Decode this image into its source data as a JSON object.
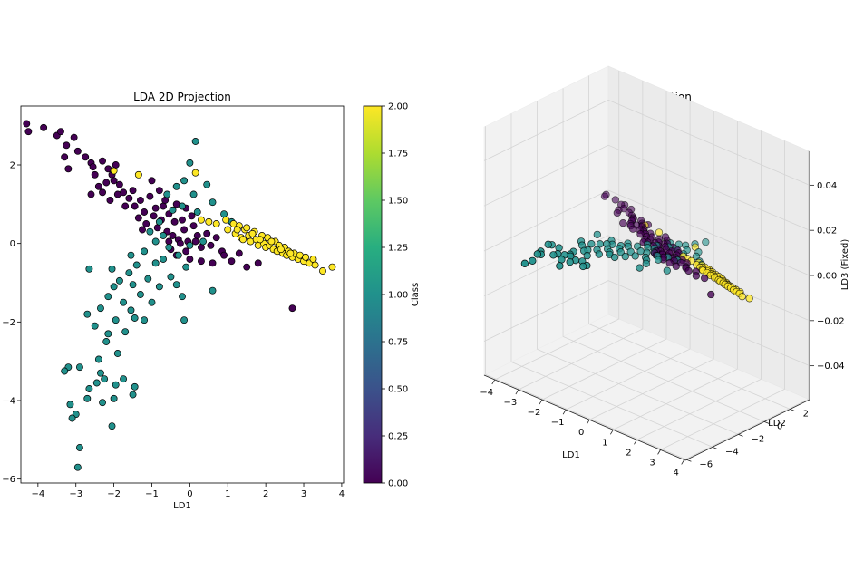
{
  "chart_data": [
    {
      "type": "scatter",
      "title": "LDA 2D Projection",
      "xlabel": "LD1",
      "ylabel": "",
      "xlim": [
        -4.45,
        4.05
      ],
      "ylim": [
        -6.1,
        3.5
      ],
      "xticks": [
        "−4",
        "−3",
        "−2",
        "−1",
        "0",
        "1",
        "2",
        "3",
        "4"
      ],
      "xtick_values": [
        -4,
        -3,
        -2,
        -1,
        0,
        1,
        2,
        3,
        4
      ],
      "yticks": [
        "−6",
        "−4",
        "−2",
        "0",
        "2"
      ],
      "ytick_values": [
        -6,
        -4,
        -2,
        0,
        2
      ],
      "grid": false,
      "colorbar": {
        "label": "Class",
        "range": [
          0,
          2
        ],
        "ticks": [
          "0.00",
          "0.25",
          "0.50",
          "0.75",
          "1.00",
          "1.25",
          "1.50",
          "1.75",
          "2.00"
        ],
        "tick_values": [
          0,
          0.25,
          0.5,
          0.75,
          1,
          1.25,
          1.5,
          1.75,
          2
        ],
        "colormap": "viridis"
      },
      "class_colors": [
        "#440154",
        "#21918c",
        "#fde725"
      ],
      "series": [
        {
          "class": 0,
          "points": [
            [
              -4.3,
              3.05
            ],
            [
              -4.25,
              2.85
            ],
            [
              -3.85,
              2.95
            ],
            [
              -3.5,
              2.75
            ],
            [
              -3.4,
              2.85
            ],
            [
              -3.25,
              2.5
            ],
            [
              -3.05,
              2.7
            ],
            [
              -3.3,
              2.2
            ],
            [
              -2.95,
              2.35
            ],
            [
              -2.75,
              2.2
            ],
            [
              -3.2,
              1.9
            ],
            [
              -2.6,
              2.05
            ],
            [
              -2.5,
              1.75
            ],
            [
              -2.3,
              2.1
            ],
            [
              -2.15,
              1.9
            ],
            [
              -2.05,
              1.75
            ],
            [
              -2.4,
              1.45
            ],
            [
              -2.2,
              1.55
            ],
            [
              -1.95,
              2.0
            ],
            [
              -1.85,
              1.5
            ],
            [
              -1.75,
              1.3
            ],
            [
              -2.6,
              1.25
            ],
            [
              -2.3,
              1.3
            ],
            [
              -2.1,
              1.1
            ],
            [
              -1.6,
              1.15
            ],
            [
              -1.45,
              0.95
            ],
            [
              -1.5,
              1.35
            ],
            [
              -1.3,
              1.1
            ],
            [
              -1.2,
              0.8
            ],
            [
              -1.05,
              1.2
            ],
            [
              -1.35,
              0.65
            ],
            [
              -0.9,
              0.9
            ],
            [
              -0.75,
              0.6
            ],
            [
              -1.15,
              0.5
            ],
            [
              -0.95,
              0.7
            ],
            [
              -0.85,
              0.4
            ],
            [
              -0.7,
              0.95
            ],
            [
              -0.6,
              0.3
            ],
            [
              -0.55,
              0.75
            ],
            [
              -0.45,
              0.2
            ],
            [
              -0.4,
              0.55
            ],
            [
              -0.3,
              0.1
            ],
            [
              -0.2,
              0.6
            ],
            [
              -0.15,
              0.35
            ],
            [
              -0.05,
              0.05
            ],
            [
              0.1,
              0.45
            ],
            [
              0.2,
              0.2
            ],
            [
              0.3,
              -0.1
            ],
            [
              0.45,
              0.25
            ],
            [
              0.55,
              -0.05
            ],
            [
              0.7,
              0.15
            ],
            [
              0.85,
              -0.2
            ],
            [
              -0.1,
              -0.2
            ],
            [
              -0.25,
              0.0
            ],
            [
              -0.5,
              -0.15
            ],
            [
              0.0,
              -0.4
            ],
            [
              0.3,
              -0.45
            ],
            [
              0.6,
              -0.5
            ],
            [
              0.9,
              -0.3
            ],
            [
              1.1,
              -0.45
            ],
            [
              1.3,
              -0.25
            ],
            [
              1.5,
              -0.6
            ],
            [
              1.8,
              -0.5
            ],
            [
              2.7,
              -1.65
            ],
            [
              -1.0,
              1.6
            ],
            [
              -0.8,
              1.35
            ],
            [
              -0.65,
              1.1
            ],
            [
              -0.35,
              1.0
            ],
            [
              -0.1,
              0.9
            ],
            [
              0.05,
              0.7
            ],
            [
              -1.7,
              0.95
            ],
            [
              -1.9,
              1.25
            ],
            [
              -2.0,
              1.6
            ],
            [
              -2.55,
              1.95
            ],
            [
              -1.25,
              0.35
            ],
            [
              -0.55,
              0.05
            ],
            [
              -0.35,
              -0.3
            ],
            [
              0.15,
              0.05
            ]
          ]
        },
        {
          "class": 1,
          "points": [
            [
              0.15,
              2.6
            ],
            [
              0.0,
              2.05
            ],
            [
              -0.15,
              1.6
            ],
            [
              0.45,
              1.5
            ],
            [
              -0.35,
              1.45
            ],
            [
              0.1,
              1.25
            ],
            [
              -0.6,
              1.25
            ],
            [
              0.6,
              1.05
            ],
            [
              -0.2,
              0.95
            ],
            [
              0.2,
              0.8
            ],
            [
              -0.45,
              0.85
            ],
            [
              0.9,
              0.75
            ],
            [
              1.1,
              0.55
            ],
            [
              -0.8,
              0.55
            ],
            [
              -1.05,
              0.3
            ],
            [
              -0.7,
              0.2
            ],
            [
              -0.9,
              0.05
            ],
            [
              -0.55,
              -0.1
            ],
            [
              -1.2,
              -0.2
            ],
            [
              -0.3,
              -0.3
            ],
            [
              -1.4,
              -0.55
            ],
            [
              -0.9,
              -0.5
            ],
            [
              -0.1,
              -0.6
            ],
            [
              -1.6,
              -0.75
            ],
            [
              -1.85,
              -0.95
            ],
            [
              -1.1,
              -0.9
            ],
            [
              -0.5,
              -0.85
            ],
            [
              -2.0,
              -1.1
            ],
            [
              -1.5,
              -1.05
            ],
            [
              -0.8,
              -1.1
            ],
            [
              -2.15,
              -1.35
            ],
            [
              -1.3,
              -1.3
            ],
            [
              -0.2,
              -1.35
            ],
            [
              -1.75,
              -1.5
            ],
            [
              -1.0,
              -1.5
            ],
            [
              -2.35,
              -1.65
            ],
            [
              -1.55,
              -1.7
            ],
            [
              -0.15,
              -1.95
            ],
            [
              -2.7,
              -1.8
            ],
            [
              -1.95,
              -1.95
            ],
            [
              -1.2,
              -1.95
            ],
            [
              -2.5,
              -2.1
            ],
            [
              -1.7,
              -2.25
            ],
            [
              -2.2,
              -2.5
            ],
            [
              -2.4,
              -2.95
            ],
            [
              -2.35,
              -3.3
            ],
            [
              -2.25,
              -3.45
            ],
            [
              -2.9,
              -3.15
            ],
            [
              -3.2,
              -3.15
            ],
            [
              -3.3,
              -3.25
            ],
            [
              -2.45,
              -3.55
            ],
            [
              -2.65,
              -3.7
            ],
            [
              -1.75,
              -3.45
            ],
            [
              -1.95,
              -3.6
            ],
            [
              -2.0,
              -3.95
            ],
            [
              -2.7,
              -3.95
            ],
            [
              -1.45,
              -3.65
            ],
            [
              -1.5,
              -3.85
            ],
            [
              -2.3,
              -4.05
            ],
            [
              -3.15,
              -4.1
            ],
            [
              -3.0,
              -4.35
            ],
            [
              -3.1,
              -4.45
            ],
            [
              -2.05,
              -4.65
            ],
            [
              -2.9,
              -5.2
            ],
            [
              -2.95,
              -5.7
            ],
            [
              -2.65,
              -0.65
            ],
            [
              -2.05,
              -0.65
            ],
            [
              0.0,
              -0.05
            ],
            [
              0.6,
              -1.2
            ],
            [
              -1.9,
              -2.8
            ],
            [
              -1.45,
              -1.9
            ],
            [
              -0.7,
              -0.4
            ],
            [
              0.35,
              0.05
            ],
            [
              -1.55,
              -0.3
            ],
            [
              -0.35,
              -1.05
            ],
            [
              -2.15,
              -2.3
            ]
          ]
        },
        {
          "class": 2,
          "points": [
            [
              -2.0,
              1.85
            ],
            [
              -1.35,
              1.75
            ],
            [
              0.15,
              1.8
            ],
            [
              0.3,
              0.6
            ],
            [
              0.5,
              0.55
            ],
            [
              0.7,
              0.5
            ],
            [
              0.95,
              0.6
            ],
            [
              1.15,
              0.5
            ],
            [
              1.0,
              0.35
            ],
            [
              1.3,
              0.45
            ],
            [
              1.2,
              0.25
            ],
            [
              1.45,
              0.35
            ],
            [
              1.35,
              0.15
            ],
            [
              1.55,
              0.2
            ],
            [
              1.6,
              0.05
            ],
            [
              1.7,
              0.3
            ],
            [
              1.75,
              0.1
            ],
            [
              1.8,
              -0.05
            ],
            [
              1.9,
              0.2
            ],
            [
              1.95,
              0.0
            ],
            [
              2.0,
              -0.1
            ],
            [
              2.05,
              0.15
            ],
            [
              2.1,
              -0.05
            ],
            [
              2.2,
              -0.15
            ],
            [
              2.25,
              0.05
            ],
            [
              2.3,
              -0.2
            ],
            [
              2.35,
              -0.05
            ],
            [
              2.45,
              -0.25
            ],
            [
              2.5,
              -0.1
            ],
            [
              2.55,
              -0.3
            ],
            [
              2.6,
              -0.2
            ],
            [
              2.7,
              -0.35
            ],
            [
              2.75,
              -0.25
            ],
            [
              2.85,
              -0.4
            ],
            [
              2.9,
              -0.3
            ],
            [
              3.0,
              -0.45
            ],
            [
              3.05,
              -0.35
            ],
            [
              3.15,
              -0.5
            ],
            [
              3.25,
              -0.4
            ],
            [
              3.3,
              -0.55
            ],
            [
              3.5,
              -0.7
            ],
            [
              3.75,
              -0.6
            ],
            [
              1.5,
              0.4
            ],
            [
              1.65,
              0.25
            ],
            [
              1.85,
              0.1
            ],
            [
              2.15,
              0.05
            ],
            [
              2.4,
              -0.15
            ],
            [
              2.65,
              -0.25
            ],
            [
              1.4,
              0.1
            ],
            [
              1.25,
              0.35
            ]
          ]
        }
      ]
    },
    {
      "type": "scatter",
      "title": "LDA 3D Projection",
      "xlabel": "LD1",
      "ylabel": "LD2",
      "zlabel": "LD3 (Fixed)",
      "xticks": [
        "−4",
        "−3",
        "−2",
        "−1",
        "0",
        "1",
        "2",
        "3",
        "4"
      ],
      "yticks": [
        "−6",
        "−4",
        "−2",
        "0",
        "2"
      ],
      "zticks": [
        "−0.04",
        "−0.02",
        "0.00",
        "0.02",
        "0.04"
      ],
      "xlim": [
        -4.45,
        4.05
      ],
      "ylim": [
        -6.1,
        3.5
      ],
      "zlim": [
        -0.055,
        0.055
      ],
      "z_value": 0.0,
      "grid": true
    }
  ]
}
